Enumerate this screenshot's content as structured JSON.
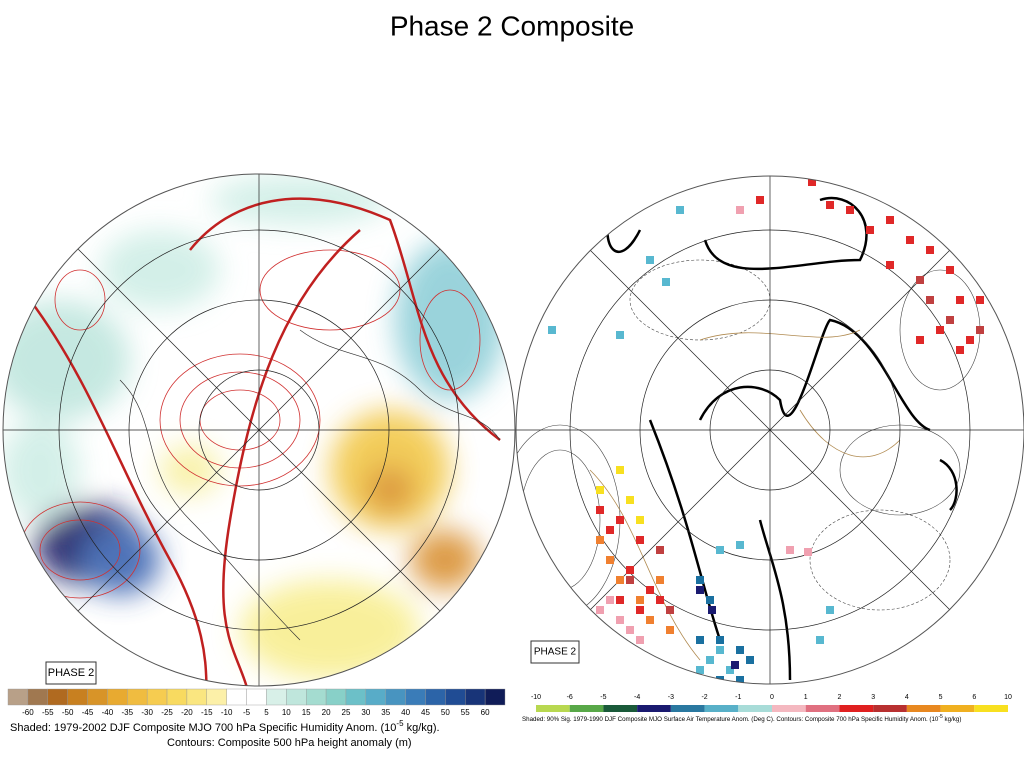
{
  "title": "Phase 2 Composite",
  "left_map": {
    "phase_label": "PHASE 2",
    "colorbar_labels": [
      "-60",
      "-55",
      "-50",
      "-45",
      "-40",
      "-35",
      "-30",
      "-25",
      "-20",
      "-15",
      "-10",
      "-5",
      "5",
      "10",
      "15",
      "20",
      "25",
      "30",
      "35",
      "40",
      "45",
      "50",
      "55",
      "60"
    ],
    "caption_line1": {
      "before": "Shaded: 1979-2002 DJF Composite MJO 700 hPa Specific Humidity Anom. (10",
      "sup": "-5",
      "after": " kg/kg)."
    },
    "caption_line2": "Contours: Composite 500 hPa height anomaly (m)"
  },
  "right_map": {
    "phase_label": "PHASE 2",
    "colorbar_labels": [
      "-10",
      "-6",
      "-5",
      "-4",
      "-3",
      "-2",
      "-1",
      "0",
      "1",
      "2",
      "3",
      "4",
      "5",
      "6",
      "10"
    ],
    "caption": {
      "before": "Shaded: 90% Sig. 1979-1990 DJF Composite MJO Surface Air Temperature Anom. (Deg C). Contours: Composite 700 hPa Specific Humidity Anom. (10",
      "sup": "-5",
      "after": " kg/kg)"
    }
  }
}
